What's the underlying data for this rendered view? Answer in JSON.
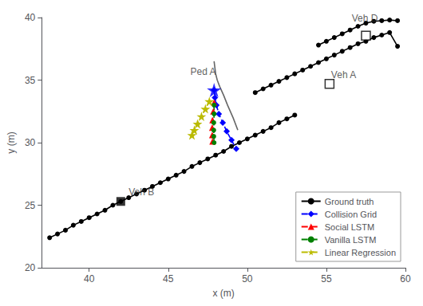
{
  "chart_data": {
    "type": "line",
    "xlabel": "x (m)",
    "ylabel": "y (m)",
    "xlim": [
      37,
      60
    ],
    "ylim": [
      20,
      40
    ],
    "xticks": [
      40,
      45,
      50,
      55,
      60
    ],
    "yticks": [
      20,
      25,
      30,
      35,
      40
    ],
    "grid": false,
    "legend": "lower right",
    "series": [
      {
        "name": "Ground truth",
        "color": "#000000",
        "marker": "circle",
        "line_style": "solid",
        "x": [
          37.5,
          38,
          38.5,
          39,
          39.5,
          40,
          40.5,
          41,
          41.5,
          42,
          42.5,
          43,
          43.5,
          44,
          44.5,
          45,
          45.5,
          46,
          46.5,
          47,
          47.5,
          48,
          48.5,
          49,
          49.5,
          50,
          50.5,
          51,
          51.5,
          52,
          52.5,
          53
        ],
        "values": [
          22.4,
          22.7,
          23.0,
          23.4,
          23.7,
          24.0,
          24.3,
          24.6,
          25.0,
          25.3,
          25.6,
          25.9,
          26.2,
          26.5,
          26.8,
          27.1,
          27.4,
          27.7,
          28.1,
          28.4,
          28.7,
          29.0,
          29.3,
          29.7,
          30.0,
          30.3,
          30.6,
          30.9,
          31.2,
          31.6,
          31.9,
          32.2
        ]
      },
      {
        "color": "#000000",
        "marker": "square",
        "line_style": "none",
        "x": [
          42.0
        ],
        "values": [
          25.3
        ]
      },
      {
        "name": "Ground truth",
        "color": "#000000",
        "marker": "circle",
        "line_style": "solid",
        "x": [
          50.5,
          51,
          51.5,
          52,
          52.5,
          53,
          53.5,
          54,
          54.5,
          55,
          55.5,
          56,
          56.5,
          57,
          57.5,
          58,
          58.5,
          59,
          59.5
        ],
        "values": [
          34.0,
          34.3,
          34.6,
          34.9,
          35.2,
          35.5,
          35.8,
          36.1,
          36.4,
          36.7,
          37.0,
          37.3,
          37.6,
          37.9,
          38.1,
          38.4,
          38.6,
          38.8,
          37.7
        ]
      },
      {
        "color": "#000000",
        "marker": "open_square",
        "line_style": "none",
        "x": [
          55.2
        ],
        "values": [
          34.7
        ]
      },
      {
        "name": "Ground truth",
        "color": "#000000",
        "marker": "circle",
        "line_style": "solid",
        "x": [
          54.5,
          55,
          55.5,
          56,
          56.5,
          57,
          57.5,
          58,
          58.5,
          59,
          59.5
        ],
        "values": [
          37.8,
          38.1,
          38.4,
          38.7,
          39.0,
          39.3,
          39.55,
          39.7,
          39.75,
          39.8,
          39.75
        ]
      },
      {
        "color": "#000000",
        "marker": "open_square",
        "line_style": "none",
        "x": [
          57.5
        ],
        "values": [
          38.55
        ]
      },
      {
        "color": "#666666",
        "marker": "none",
        "line_style": "solid",
        "x": [
          47.9,
          47.95,
          48.0,
          48.1,
          48.25,
          48.5,
          48.75,
          49.1,
          49.4
        ],
        "values": [
          36.5,
          36.0,
          35.5,
          35.0,
          34.5,
          33.8,
          33.0,
          32.0,
          31.0
        ]
      },
      {
        "name": "Collision Grid",
        "color": "#0000ff",
        "marker": "diamond",
        "line_style": "dashed",
        "x": [
          47.9,
          47.95,
          48.05,
          48.2,
          48.45,
          48.7,
          49.0,
          49.3
        ],
        "values": [
          34.2,
          33.6,
          33.0,
          32.3,
          31.6,
          30.9,
          30.2,
          29.5
        ]
      },
      {
        "color": "#0000ff",
        "marker": "star",
        "line_style": "none",
        "x": [
          47.9
        ],
        "values": [
          34.2
        ]
      },
      {
        "name": "Social LSTM",
        "color": "#ff0000",
        "marker": "triangle",
        "line_style": "dashed",
        "x": [
          47.9,
          47.85,
          47.8,
          47.78,
          47.78,
          47.8
        ],
        "values": [
          33.2,
          32.5,
          31.8,
          31.2,
          30.6,
          30.1
        ]
      },
      {
        "name": "Vanilla LSTM",
        "color": "#008000",
        "marker": "circle",
        "line_style": "dashed",
        "x": [
          47.9,
          47.9,
          47.88,
          47.88,
          47.88,
          47.9
        ],
        "values": [
          33.0,
          32.3,
          31.6,
          31.0,
          30.5,
          30.0
        ]
      },
      {
        "name": "Linear Regression",
        "color": "#bbbb00",
        "marker": "star",
        "line_style": "dashed",
        "x": [
          47.6,
          47.35,
          47.1,
          46.85,
          46.65,
          46.5
        ],
        "values": [
          33.3,
          32.7,
          32.1,
          31.5,
          31.0,
          30.6
        ]
      }
    ],
    "annotations": [
      {
        "text": "Veh B",
        "x": 42.5,
        "y": 25.65
      },
      {
        "text": "Veh A",
        "x": 55.3,
        "y": 35.05
      },
      {
        "text": "Veh D",
        "x": 56.6,
        "y": 39.55
      },
      {
        "text": "Ped A",
        "x": 46.4,
        "y": 35.3
      }
    ]
  }
}
